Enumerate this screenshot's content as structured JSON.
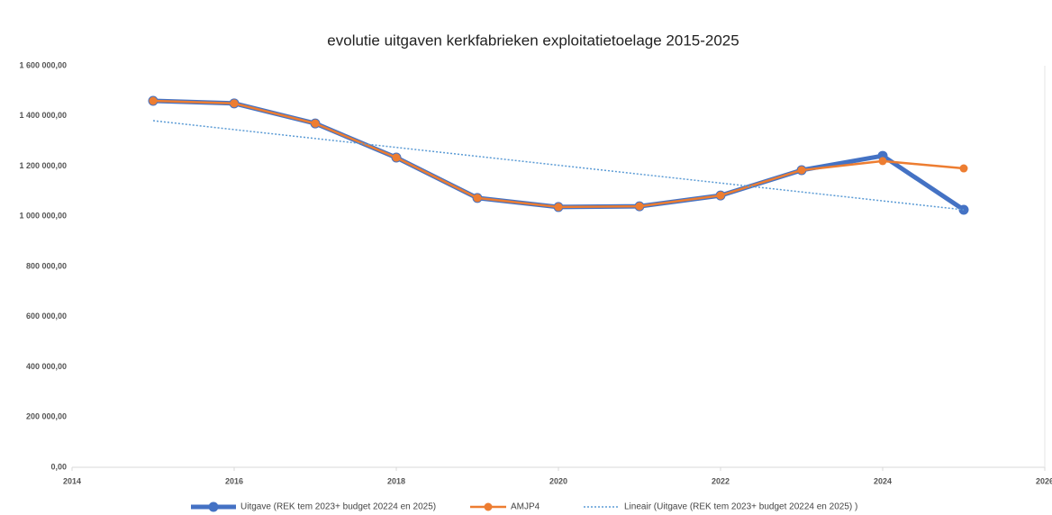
{
  "chart_data": {
    "type": "line",
    "title": "evolutie uitgaven kerkfabrieken exploitatietoelage 2015-2025",
    "x": [
      2015,
      2016,
      2017,
      2018,
      2019,
      2020,
      2021,
      2022,
      2023,
      2024,
      2025
    ],
    "series": [
      {
        "name": "Uitgave (REK tem 2023+ budget  20224 en 2025)",
        "color": "#4472c4",
        "values": [
          1460000,
          1450000,
          1370000,
          1234000,
          1073000,
          1037000,
          1040000,
          1083000,
          1184000,
          1241000,
          1026000
        ]
      },
      {
        "name": "AMJP4",
        "color": "#ed7d31",
        "values": [
          1460000,
          1450000,
          1370000,
          1234000,
          1073000,
          1037000,
          1040000,
          1083000,
          1184000,
          1220000,
          1191000
        ]
      },
      {
        "name": "Lineair (Uitgave (REK tem 2023+ budget  20224 en 2025) )",
        "color": "#5b9bd5",
        "style": "dotted",
        "x": [
          2015,
          2025
        ],
        "values": [
          1381000,
          1026000
        ]
      }
    ],
    "xlim": [
      2014,
      2026
    ],
    "xticks": [
      2014,
      2016,
      2018,
      2020,
      2022,
      2024,
      2026
    ],
    "ylim": [
      0,
      1600000
    ],
    "yticks": [
      {
        "value": 0,
        "label": "0,00"
      },
      {
        "value": 200000,
        "label": "200 000,00"
      },
      {
        "value": 400000,
        "label": "400 000,00"
      },
      {
        "value": 600000,
        "label": "600 000,00"
      },
      {
        "value": 800000,
        "label": "800 000,00"
      },
      {
        "value": 1000000,
        "label": "1 000 000,00"
      },
      {
        "value": 1200000,
        "label": "1 200 000,00"
      },
      {
        "value": 1400000,
        "label": "1 400 000,00"
      },
      {
        "value": 1600000,
        "label": "1 600 000,00"
      }
    ],
    "grid": false,
    "legend": "bottom"
  }
}
